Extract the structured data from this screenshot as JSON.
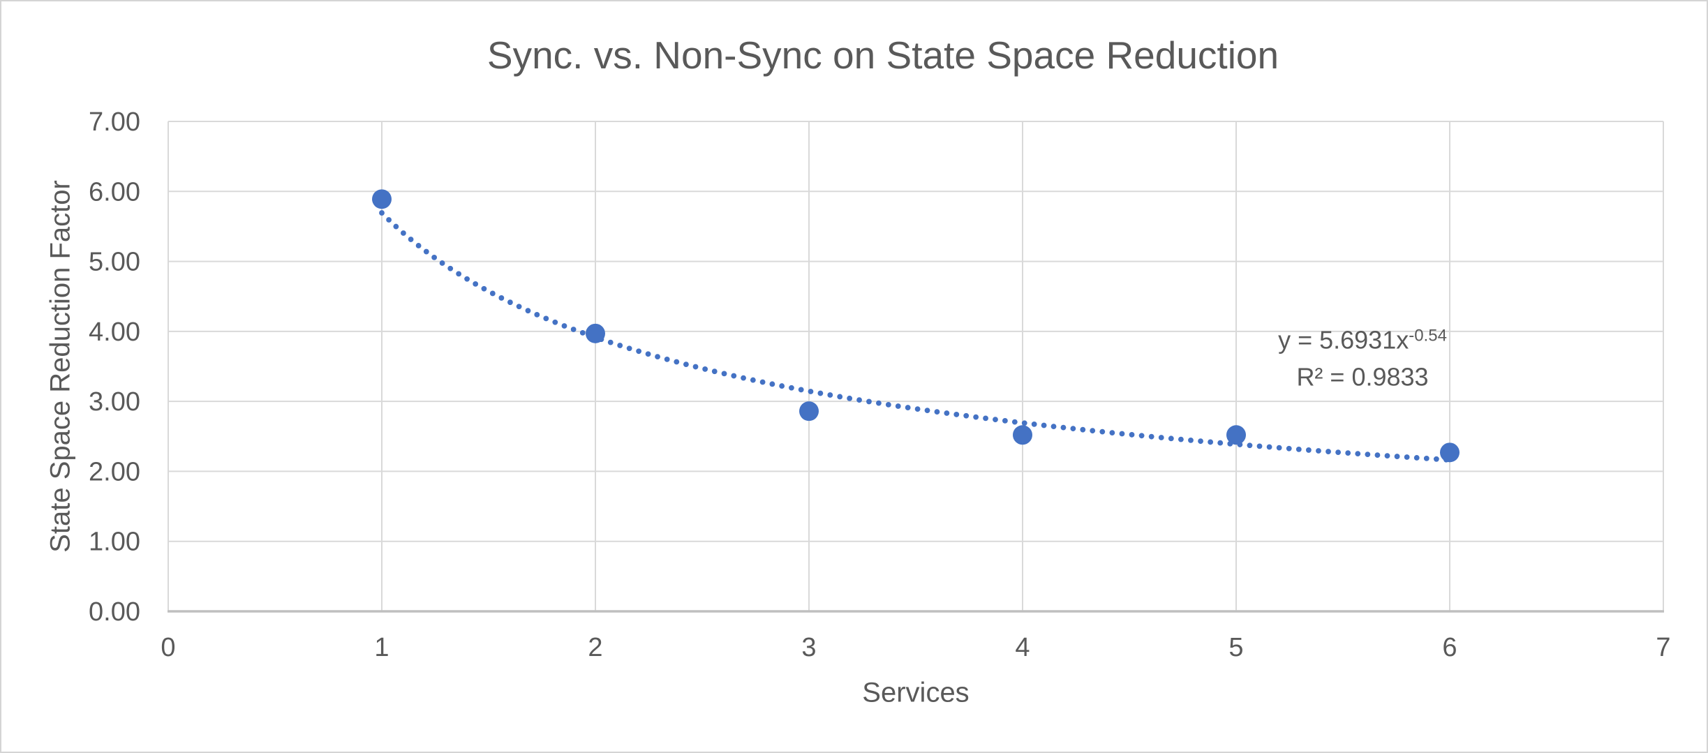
{
  "chart_data": {
    "type": "scatter",
    "title": "Sync. vs. Non-Sync on State Space Reduction",
    "xlabel": "Services",
    "ylabel": "State Space Reduction Factor",
    "xlim": [
      0,
      7
    ],
    "ylim": [
      0,
      7
    ],
    "grid": true,
    "legend": "none",
    "x_ticks": [
      {
        "value": 0,
        "label": "0"
      },
      {
        "value": 1,
        "label": "1"
      },
      {
        "value": 2,
        "label": "2"
      },
      {
        "value": 3,
        "label": "3"
      },
      {
        "value": 4,
        "label": "4"
      },
      {
        "value": 5,
        "label": "5"
      },
      {
        "value": 6,
        "label": "6"
      },
      {
        "value": 7,
        "label": "7"
      }
    ],
    "y_ticks": [
      {
        "value": 0,
        "label": "0.00"
      },
      {
        "value": 1,
        "label": "1.00"
      },
      {
        "value": 2,
        "label": "2.00"
      },
      {
        "value": 3,
        "label": "3.00"
      },
      {
        "value": 4,
        "label": "4.00"
      },
      {
        "value": 5,
        "label": "5.00"
      },
      {
        "value": 6,
        "label": "6.00"
      },
      {
        "value": 7,
        "label": "7.00"
      }
    ],
    "series": [
      {
        "name": "State Space Reduction Factor",
        "x": [
          1,
          2,
          3,
          4,
          5,
          6
        ],
        "y": [
          5.89,
          3.97,
          2.86,
          2.52,
          2.52,
          2.27
        ]
      }
    ],
    "trendline": {
      "type": "power",
      "coefficient": 5.6931,
      "exponent": -0.54,
      "x_start": 1,
      "x_end": 6,
      "style": "dotted",
      "equation_prefix": "y = 5.6931x",
      "equation_exponent": "-0.54",
      "r_squared": "R² = 0.9833"
    },
    "colors": {
      "marker": "#4472C4",
      "trendline": "#4472C4",
      "gridline": "#D9D9D9",
      "axis_line": "#BFBFBF",
      "text": "#595959"
    }
  }
}
